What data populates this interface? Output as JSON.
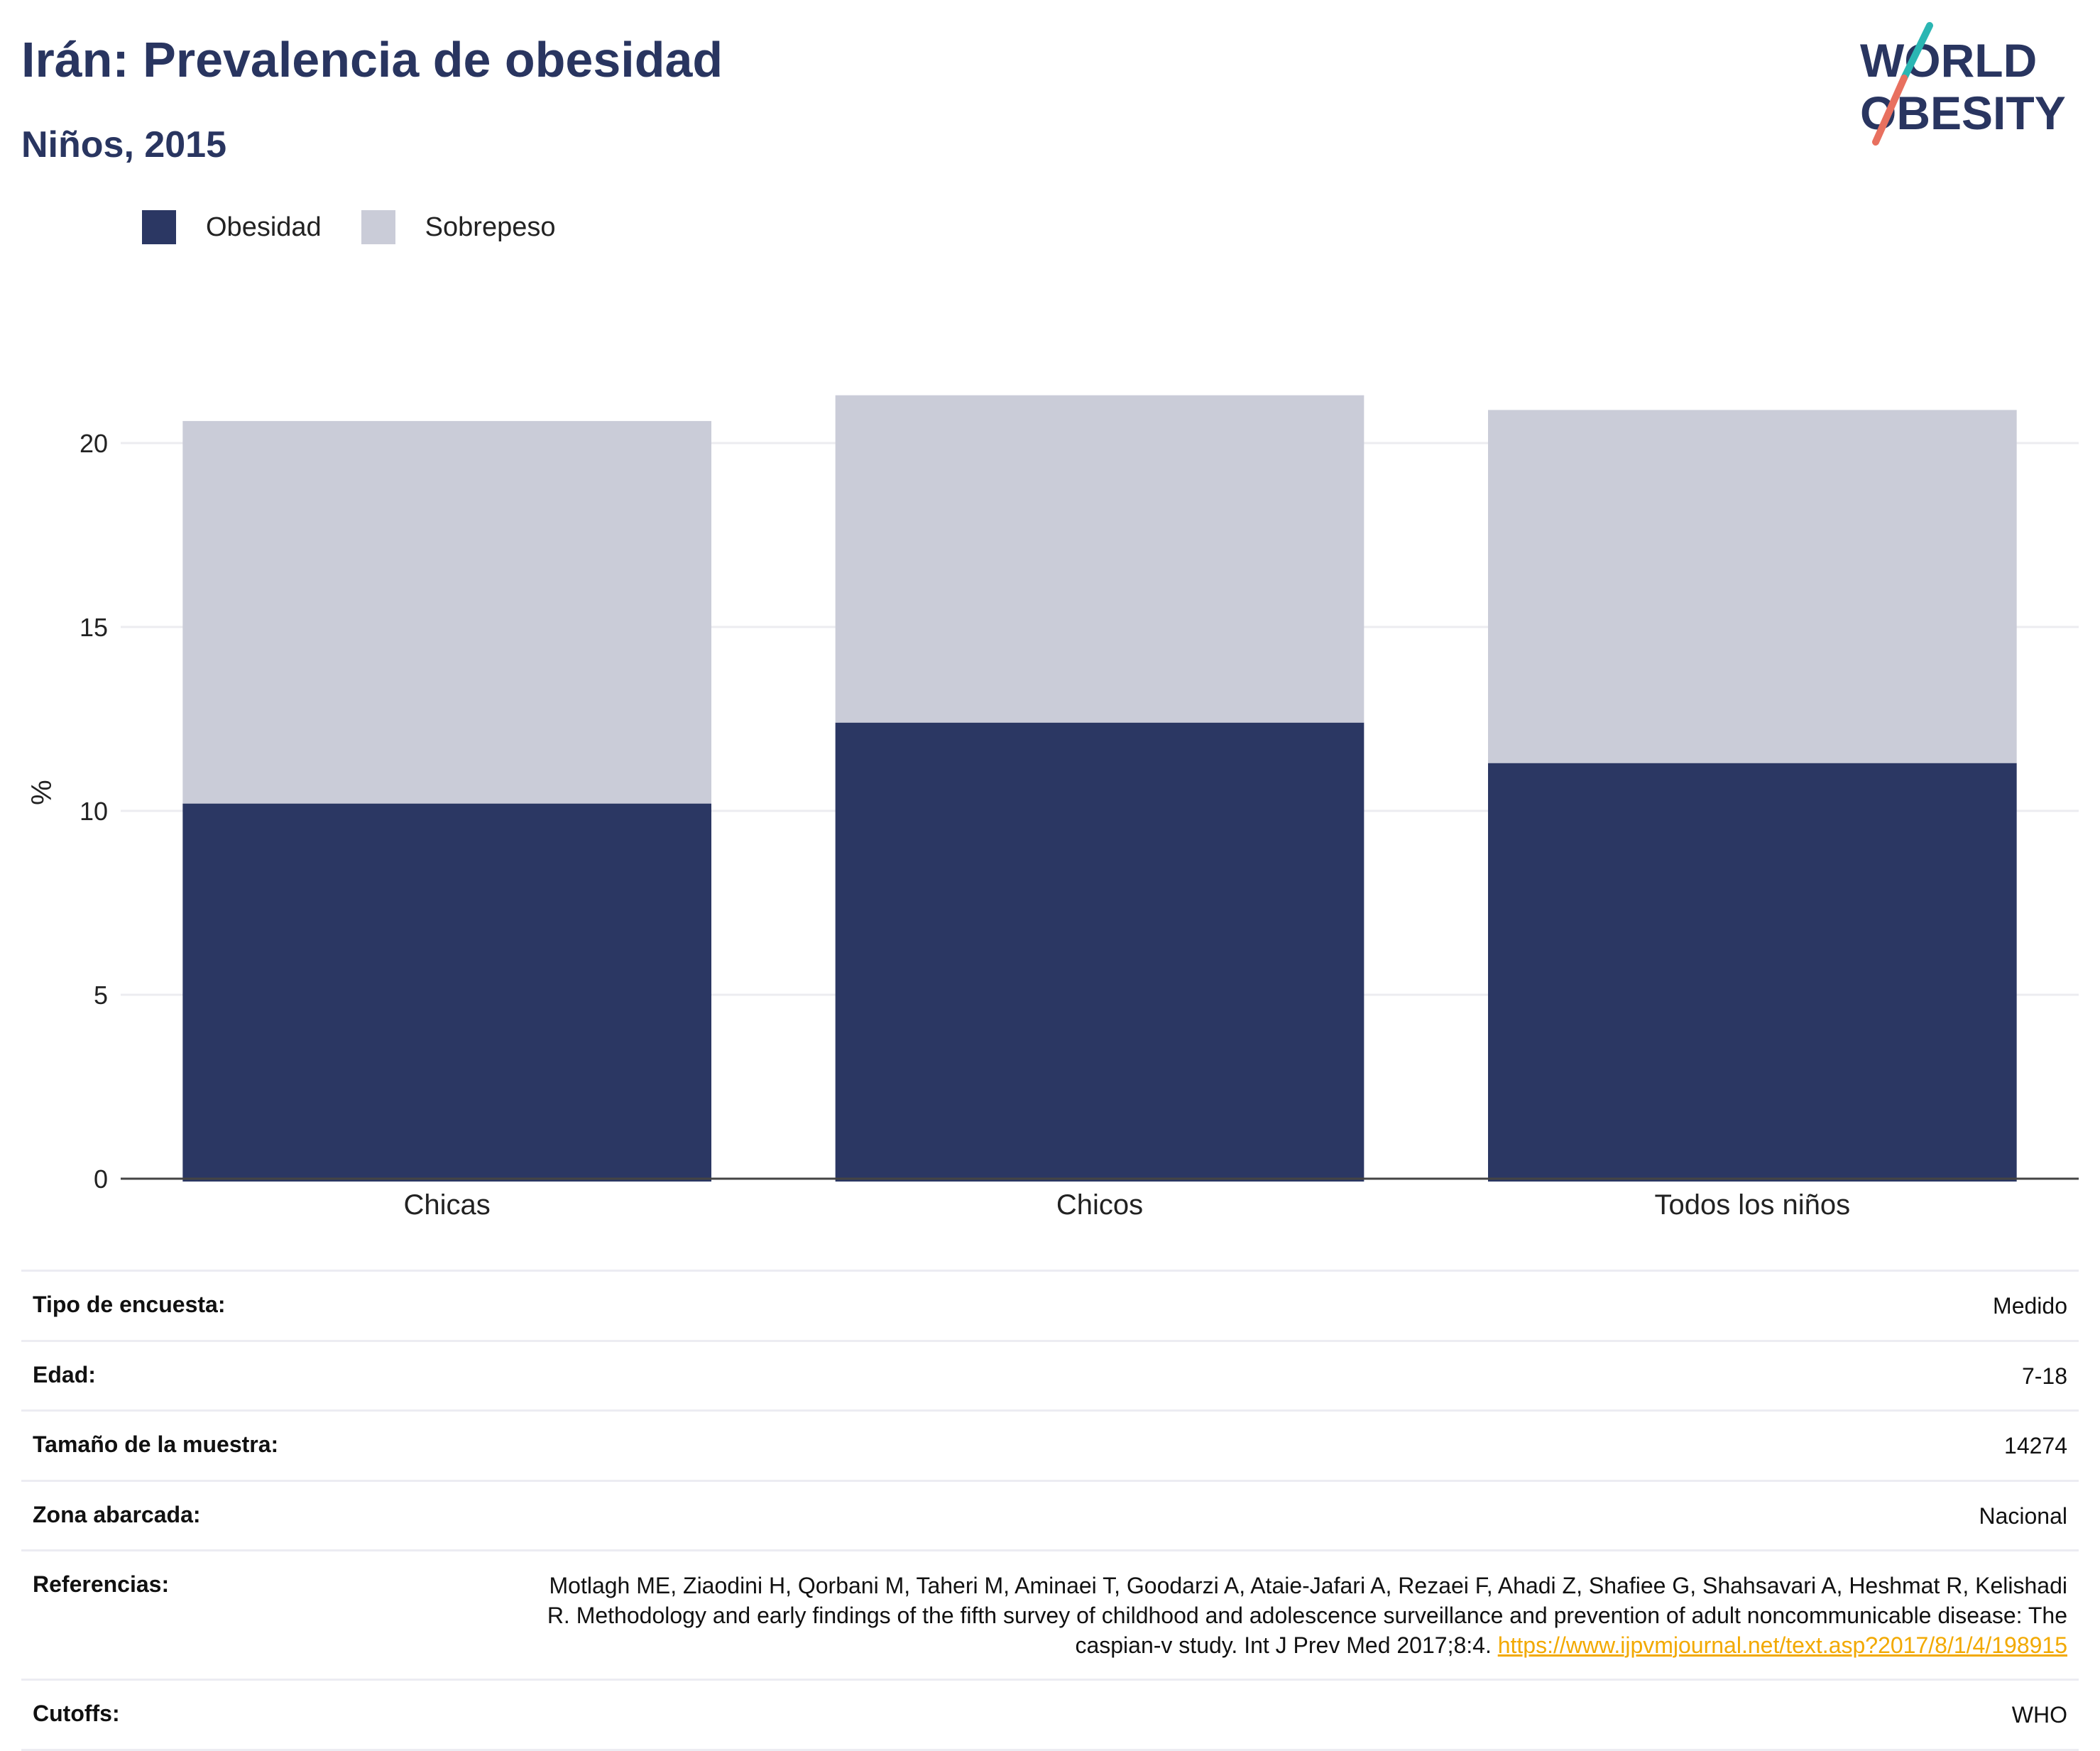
{
  "header": {
    "title": "Irán: Prevalencia de obesidad",
    "subtitle": "Niños, 2015"
  },
  "logo": {
    "line1": "WORLD",
    "line2": "OBESITY"
  },
  "colors": {
    "obesity": "#2b3763",
    "overweight": "#caccd8",
    "accent_teal": "#2bb6b3",
    "accent_coral": "#e8705f",
    "link": "#f2a900"
  },
  "chart_data": {
    "type": "bar",
    "stacked": true,
    "categories": [
      "Chicas",
      "Chicos",
      "Todos los niños"
    ],
    "series": [
      {
        "name": "Obesidad",
        "values": [
          10.2,
          12.4,
          11.3
        ]
      },
      {
        "name": "Sobrepeso",
        "values": [
          10.4,
          8.9,
          9.6
        ]
      }
    ],
    "ylabel": "%",
    "ylim": [
      0,
      25
    ],
    "yticks": [
      0,
      5,
      10,
      15,
      20
    ],
    "grid": true,
    "legend_position": "top-left"
  },
  "info": {
    "rows": [
      {
        "label": "Tipo de encuesta:",
        "value": "Medido"
      },
      {
        "label": "Edad:",
        "value": "7-18"
      },
      {
        "label": "Tamaño de la muestra:",
        "value": "14274"
      },
      {
        "label": "Zona abarcada:",
        "value": "Nacional"
      }
    ],
    "references": {
      "label": "Referencias:",
      "text": "Motlagh ME, Ziaodini H, Qorbani M, Taheri M, Aminaei T, Goodarzi A, Ataie-Jafari A, Rezaei F, Ahadi Z, Shafiee G, Shahsavari A, Heshmat R, Kelishadi R. Methodology and early findings of the fifth survey of childhood and adolescence surveillance and prevention of adult noncommunicable disease: The caspian-v study. Int J Prev Med 2017;8:4.",
      "link": "https://www.ijpvmjournal.net/text.asp?2017/8/1/4/198915"
    },
    "cutoffs": {
      "label": "Cutoffs:",
      "value": "WHO"
    }
  }
}
